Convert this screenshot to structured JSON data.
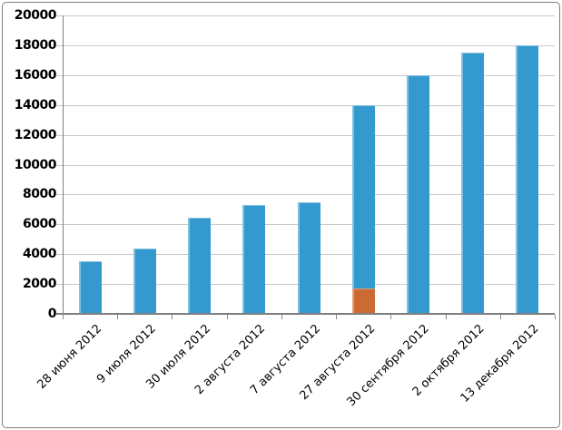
{
  "chart_data": {
    "type": "bar",
    "stacked": true,
    "title": "",
    "xlabel": "",
    "ylabel": "",
    "categories": [
      "28 июня 2012",
      "9 июля 2012",
      "30 июля 2012",
      "2 августа 2012",
      "7 августа 2012",
      "27 августа 2012",
      "30 сентября 2012",
      "2 октября 2012",
      "13 декабря 2012"
    ],
    "series": [
      {
        "name": "orange-bottom-segment",
        "color": "#cc6a33",
        "values": [
          0,
          0,
          0,
          0,
          0,
          1700,
          0,
          0,
          0
        ]
      },
      {
        "name": "blue-main-series",
        "color": "#3499ce",
        "values": [
          3500,
          4400,
          6450,
          7300,
          7500,
          12300,
          16000,
          17500,
          18000
        ]
      }
    ],
    "bar_totals": [
      3500,
      4400,
      6450,
      7300,
      7500,
      14000,
      16000,
      17500,
      18000
    ],
    "y_ticks": [
      0,
      2000,
      4000,
      6000,
      8000,
      10000,
      12000,
      14000,
      16000,
      18000,
      20000
    ],
    "ylim": [
      0,
      20000
    ],
    "grid": true,
    "legend": "none",
    "x_label_rotation_deg": -45
  },
  "colors": {
    "background": "#ffffff",
    "frame_border": "#7f7f7f",
    "gridline": "#c9c9c9",
    "axis": "#7f7f7f",
    "text": "#000000",
    "bar_blue": "#3499ce",
    "bar_orange": "#cc6a33"
  }
}
